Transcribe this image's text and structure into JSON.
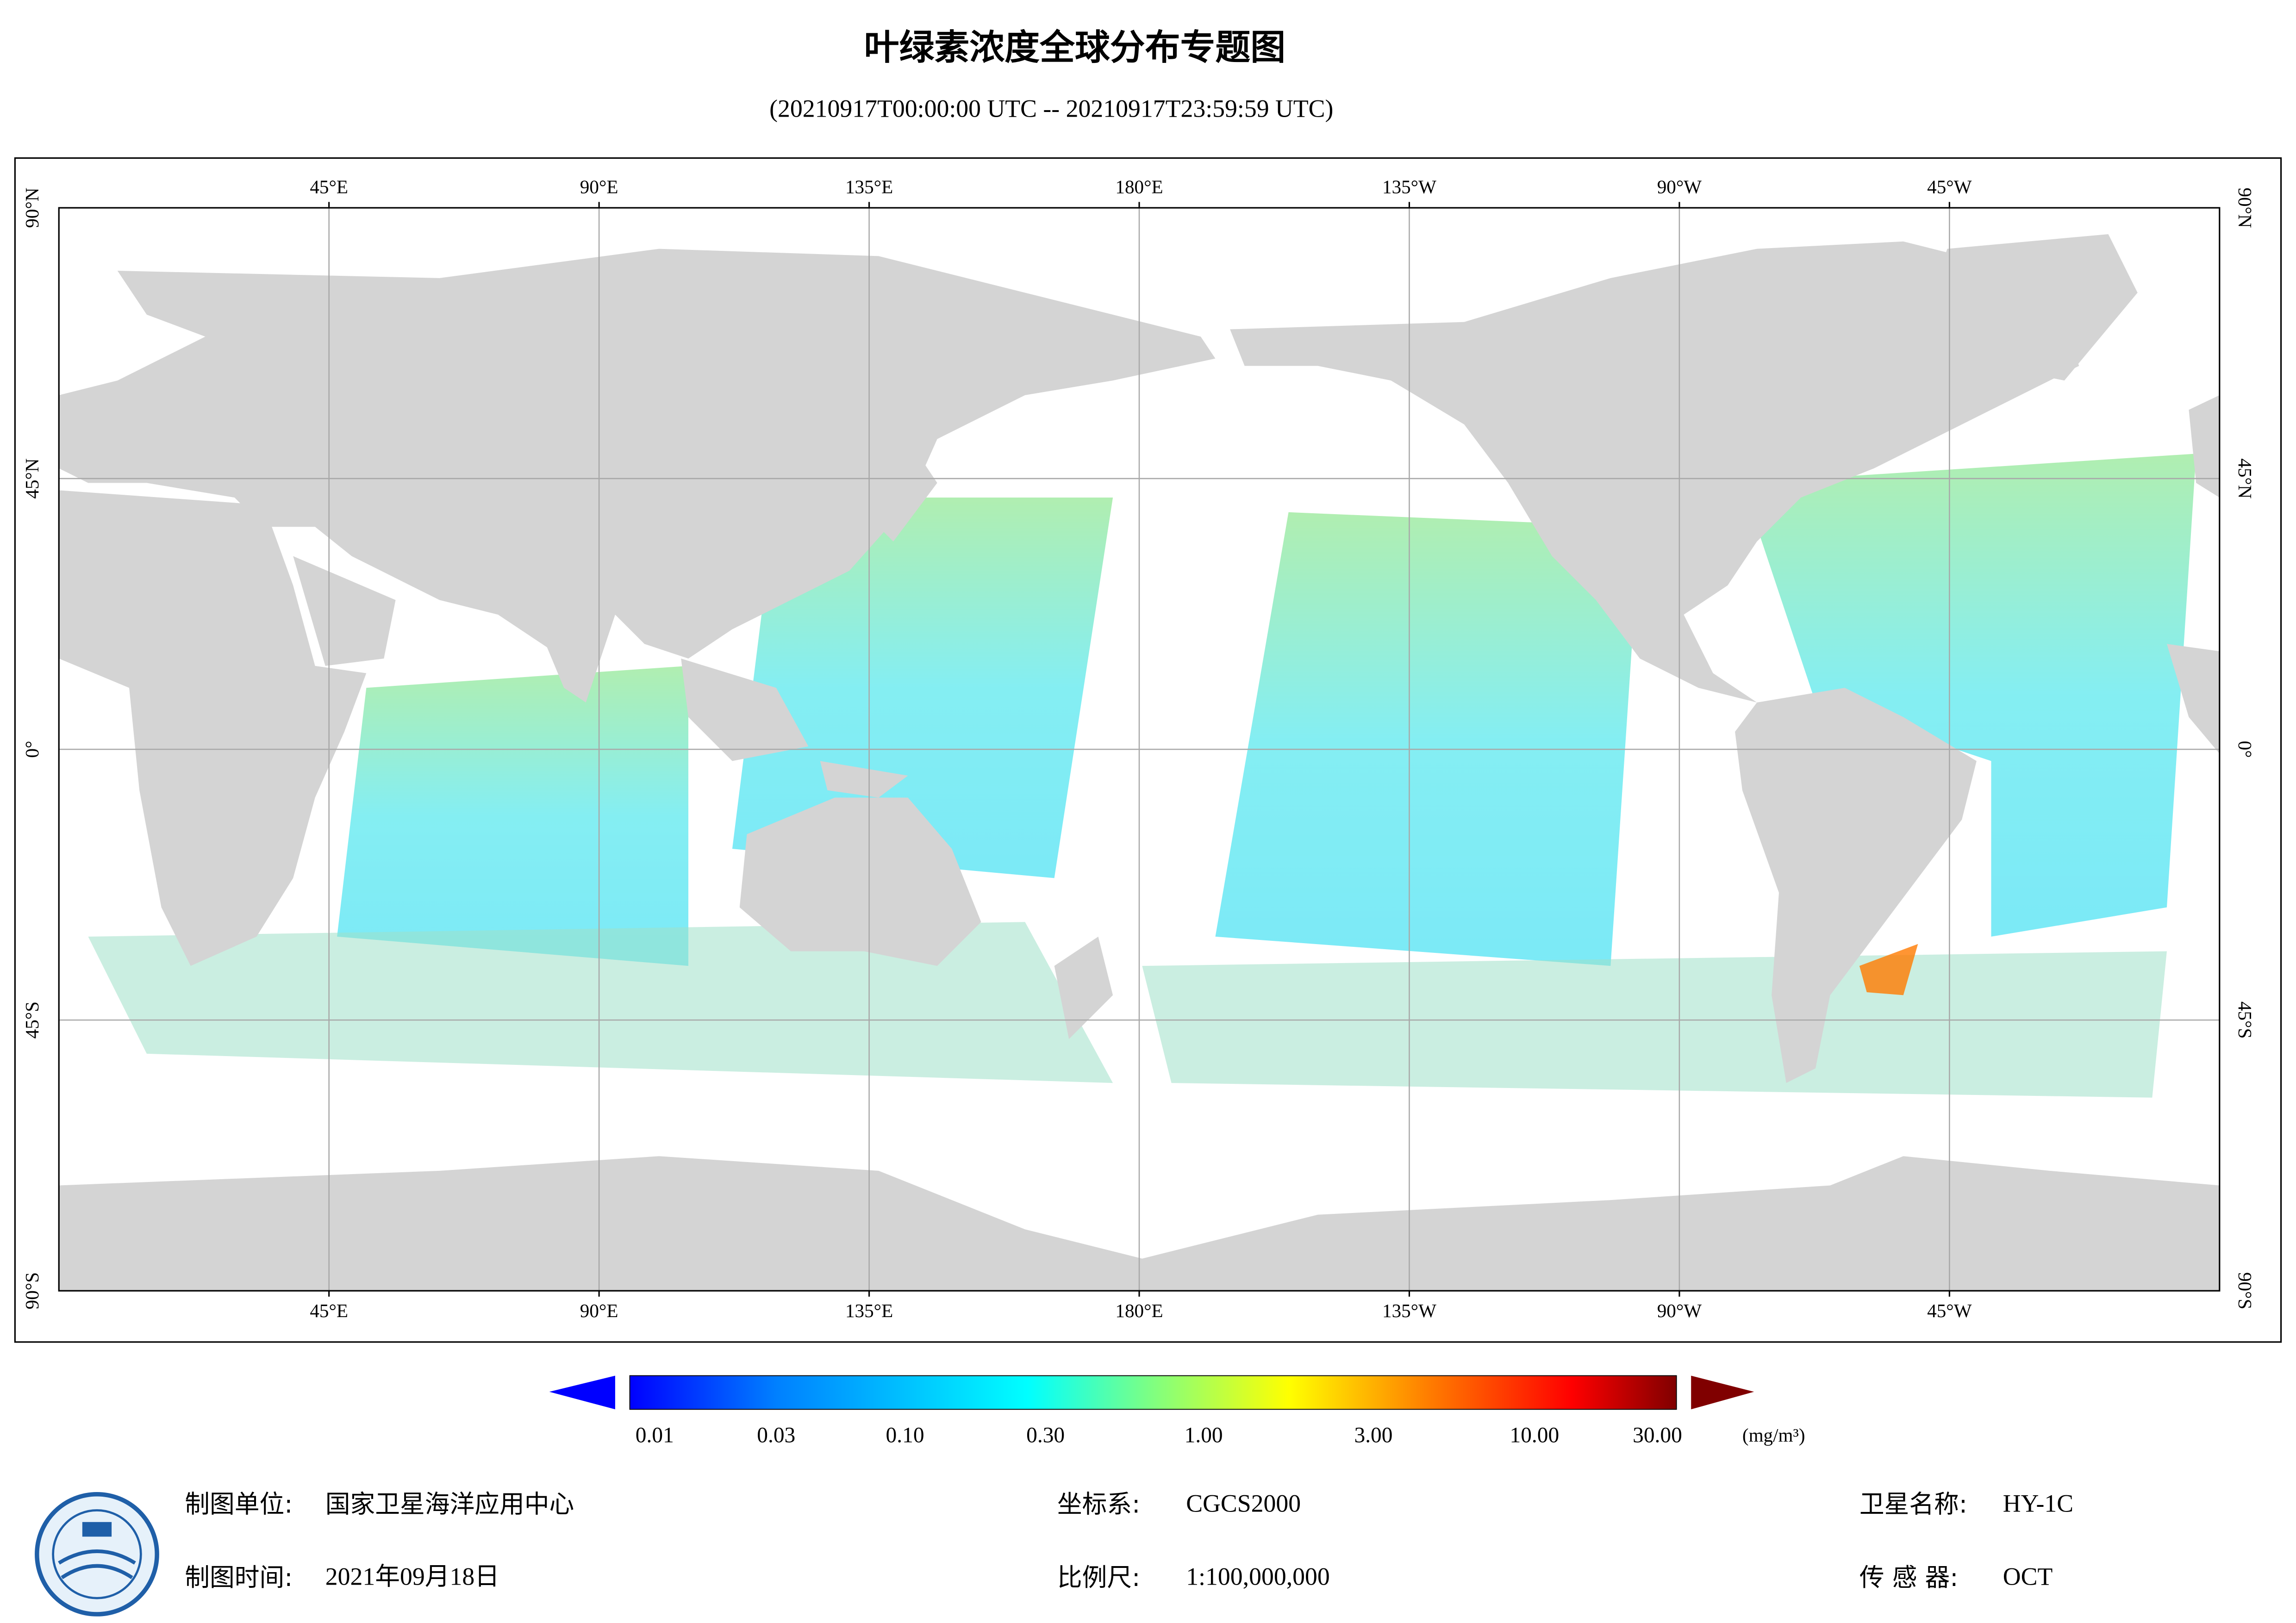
{
  "title": "叶绿素浓度全球分布专题图",
  "subtitle": "(20210917T00:00:00 UTC -- 20210917T23:59:59 UTC)",
  "map": {
    "lon_labels": [
      "45°E",
      "90°E",
      "135°E",
      "180°E",
      "135°W",
      "90°W",
      "45°W"
    ],
    "lat_labels": [
      "90°N",
      "45°N",
      "0°",
      "45°S",
      "90°S"
    ]
  },
  "colorbar": {
    "labels": [
      "0.01",
      "0.03",
      "0.10",
      "0.30",
      "1.00",
      "3.00",
      "10.00",
      "30.00"
    ],
    "unit": "(mg/m³)"
  },
  "footer": {
    "unit_label": "制图单位:",
    "unit": "国家卫星海洋应用中心",
    "date_label": "制图时间:",
    "date": "2021年09月18日",
    "crs_label": "坐标系:",
    "crs": "CGCS2000",
    "scale_label": "比例尺:",
    "scale": "1:100,000,000",
    "satellite_label": "卫星名称:",
    "satellite": "HY-1C",
    "sensor_label": "传 感 器:",
    "sensor": "OCT"
  }
}
